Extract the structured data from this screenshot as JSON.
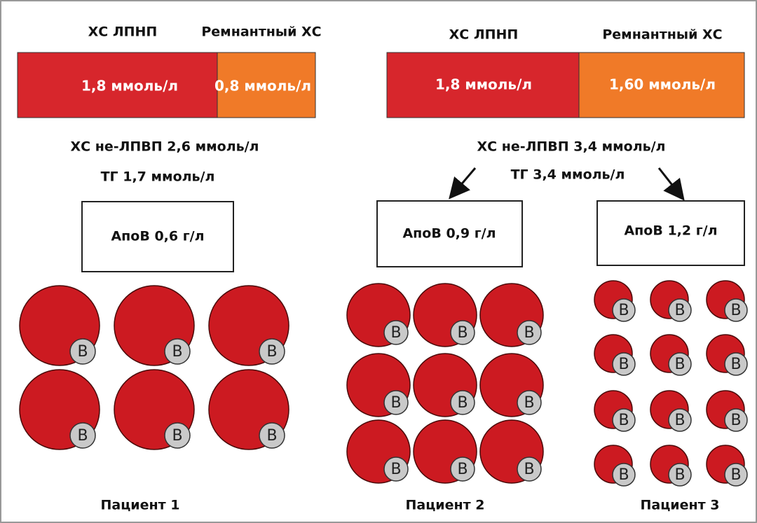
{
  "left": {
    "ldl_label": "ХС ЛПНП",
    "remnant_label": "Ремнантный ХС",
    "ldl_value": "1,8 ммоль/л",
    "remnant_value": "0,8 ммоль/л",
    "non_hdl": "ХС не-ЛПВП 2,6 ммоль/л",
    "tg": "ТГ 1,7 ммоль/л"
  },
  "right": {
    "ldl_label": "ХС ЛПНП",
    "remnant_label": "Ремнантный ХС",
    "ldl_value": "1,8 ммоль/л",
    "remnant_value": "1,60 ммоль/л",
    "non_hdl": "ХС не-ЛПВП 3,4 ммоль/л",
    "tg": "ТГ 3,4 ммоль/л"
  },
  "patients": [
    {
      "apob": "АпоВ 0,6 г/л",
      "name": "Пациент 1"
    },
    {
      "apob": "АпоВ 0,9 г/л",
      "name": "Пациент 2"
    },
    {
      "apob": "АпоВ 1,2 г/л",
      "name": "Пациент 3"
    }
  ],
  "particle_label": "B"
}
